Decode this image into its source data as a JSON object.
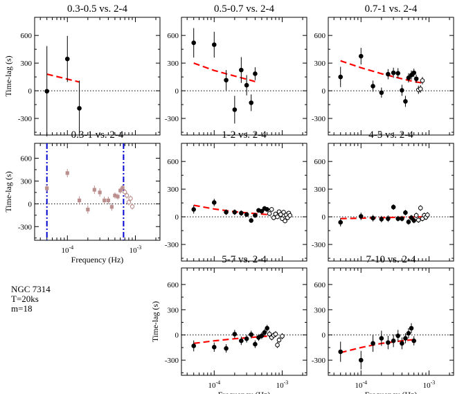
{
  "annotation": {
    "object": "NGC 7314",
    "segment": "T=20ks",
    "bins": "m=18"
  },
  "chart_data": [
    {
      "type": "scatter",
      "title": "0.3-0.5 vs. 2-4",
      "xlabel": "",
      "ylabel": "Time-lag (s)",
      "xscale": "log",
      "xlim": [
        3.3e-05,
        0.0023
      ],
      "ylim": [
        -480,
        720
      ],
      "yticks": [
        "600",
        "300",
        "0",
        "-300"
      ],
      "xticklabels": [],
      "points": [
        {
          "x": 5e-05,
          "y": -5,
          "err": 490
        },
        {
          "x": 0.0001,
          "y": 345,
          "err": 250
        },
        {
          "x": 0.00015,
          "y": -190,
          "err": 300
        }
      ],
      "model": {
        "x": [
          5e-05,
          0.00015
        ],
        "y": [
          180,
          95
        ],
        "color": "#ff0000"
      },
      "zero_line": true
    },
    {
      "type": "scatter",
      "title": "0.5-0.7 vs. 2-4",
      "xlabel": "",
      "ylabel": "",
      "xscale": "log",
      "xlim": [
        3.3e-05,
        0.0023
      ],
      "ylim": [
        -480,
        720
      ],
      "yticks": [
        "600",
        "300",
        "0",
        "-300"
      ],
      "xticklabels": [],
      "points": [
        {
          "x": 5e-05,
          "y": 520,
          "err": 160
        },
        {
          "x": 0.0001,
          "y": 500,
          "err": 140
        },
        {
          "x": 0.00015,
          "y": 115,
          "err": 110
        },
        {
          "x": 0.0002,
          "y": -205,
          "err": 150
        },
        {
          "x": 0.00025,
          "y": 225,
          "err": 140
        },
        {
          "x": 0.0003,
          "y": 60,
          "err": 110
        },
        {
          "x": 0.00035,
          "y": -130,
          "err": 90
        },
        {
          "x": 0.0004,
          "y": 185,
          "err": 70
        }
      ],
      "model": {
        "x": [
          5e-05,
          0.0001,
          0.0002,
          0.0003,
          0.0004
        ],
        "y": [
          300,
          220,
          160,
          125,
          100
        ],
        "color": "#ff0000"
      },
      "zero_line": true
    },
    {
      "type": "scatter",
      "title": "0.7-1 vs. 2-4",
      "xlabel": "",
      "ylabel": "",
      "xscale": "log",
      "xlim": [
        3.3e-05,
        0.0023
      ],
      "ylim": [
        -480,
        720
      ],
      "yticks": [
        "600",
        "300",
        "0",
        "-300"
      ],
      "xticklabels": [],
      "points": [
        {
          "x": 5e-05,
          "y": 150,
          "err": 110
        },
        {
          "x": 0.0001,
          "y": 375,
          "err": 90
        },
        {
          "x": 0.00015,
          "y": 50,
          "err": 60
        },
        {
          "x": 0.0002,
          "y": -20,
          "err": 55
        },
        {
          "x": 0.00025,
          "y": 180,
          "err": 55
        },
        {
          "x": 0.0003,
          "y": 195,
          "err": 55
        },
        {
          "x": 0.00035,
          "y": 190,
          "err": 55
        },
        {
          "x": 0.0004,
          "y": 5,
          "err": 60
        },
        {
          "x": 0.00045,
          "y": -115,
          "err": 60
        },
        {
          "x": 0.0005,
          "y": 140,
          "err": 50
        },
        {
          "x": 0.00055,
          "y": 170,
          "err": 50
        },
        {
          "x": 0.0006,
          "y": 195,
          "err": 45
        },
        {
          "x": 0.00065,
          "y": 130,
          "err": 45
        },
        {
          "x": 0.0007,
          "y": 10,
          "err": 45,
          "open": true
        },
        {
          "x": 0.00075,
          "y": 20,
          "err": 40,
          "open": true
        },
        {
          "x": 0.0008,
          "y": 110,
          "err": 40,
          "open": true
        }
      ],
      "model": {
        "x": [
          5e-05,
          0.0001,
          0.0002,
          0.0004,
          0.0006,
          0.0008
        ],
        "y": [
          325,
          250,
          185,
          130,
          100,
          85
        ],
        "color": "#ff0000"
      },
      "zero_line": true
    },
    {
      "type": "scatter",
      "title": "0.3-1 vs. 2-4",
      "xlabel": "Frequency (Hz)",
      "ylabel": "Time-lag (s)",
      "xscale": "log",
      "xlim": [
        3.3e-05,
        0.0023
      ],
      "ylim": [
        -480,
        720
      ],
      "yticks": [
        "600",
        "300",
        "0",
        "-300"
      ],
      "xticklabels": [
        "10^-4",
        "10^-3"
      ],
      "point_color": "#bc8f8f",
      "points": [
        {
          "x": 5e-05,
          "y": 205,
          "err": 45
        },
        {
          "x": 0.0001,
          "y": 405,
          "err": 55
        },
        {
          "x": 0.00015,
          "y": 45,
          "err": 55
        },
        {
          "x": 0.0002,
          "y": -75,
          "err": 55
        },
        {
          "x": 0.00025,
          "y": 185,
          "err": 55
        },
        {
          "x": 0.0003,
          "y": 150,
          "err": 55
        },
        {
          "x": 0.00035,
          "y": 45,
          "err": 50
        },
        {
          "x": 0.0004,
          "y": 45,
          "err": 50
        },
        {
          "x": 0.00045,
          "y": -40,
          "err": 50
        },
        {
          "x": 0.0005,
          "y": 110,
          "err": 40
        },
        {
          "x": 0.00055,
          "y": 95,
          "err": 40
        },
        {
          "x": 0.0006,
          "y": 175,
          "err": 40
        },
        {
          "x": 0.00065,
          "y": 210,
          "err": 40
        },
        {
          "x": 0.0007,
          "y": 155,
          "err": 40,
          "open": true
        },
        {
          "x": 0.00075,
          "y": 110,
          "err": 40,
          "open": true
        },
        {
          "x": 0.0008,
          "y": 20,
          "err": 40,
          "open": true
        },
        {
          "x": 0.00085,
          "y": 70,
          "err": 40,
          "open": true
        },
        {
          "x": 0.0009,
          "y": -35,
          "err": 40,
          "open": true
        }
      ],
      "vlines": {
        "x": [
          5e-05,
          0.00067
        ],
        "color": "#0000cd"
      },
      "zero_line": true
    },
    {
      "type": "scatter",
      "title": "1-2 vs. 2-4",
      "xlabel": "",
      "ylabel": "",
      "xscale": "log",
      "xlim": [
        3.3e-05,
        0.0023
      ],
      "ylim": [
        -480,
        720
      ],
      "yticks": [
        "600",
        "300",
        "0",
        "-300"
      ],
      "xticklabels": [],
      "points": [
        {
          "x": 5e-05,
          "y": 80,
          "err": 45
        },
        {
          "x": 0.0001,
          "y": 155,
          "err": 40
        },
        {
          "x": 0.00015,
          "y": 50,
          "err": 30
        },
        {
          "x": 0.0002,
          "y": 50,
          "err": 30
        },
        {
          "x": 0.00025,
          "y": 40,
          "err": 30
        },
        {
          "x": 0.0003,
          "y": 25,
          "err": 25
        },
        {
          "x": 0.00035,
          "y": -40,
          "err": 25
        },
        {
          "x": 0.0004,
          "y": 15,
          "err": 25
        },
        {
          "x": 0.00045,
          "y": 70,
          "err": 25
        },
        {
          "x": 0.0005,
          "y": 60,
          "err": 25
        },
        {
          "x": 0.00055,
          "y": 90,
          "err": 25
        },
        {
          "x": 0.0006,
          "y": 80,
          "err": 25
        },
        {
          "x": 0.00065,
          "y": 35,
          "err": 25,
          "open": true
        },
        {
          "x": 0.0007,
          "y": 80,
          "err": 25,
          "open": true
        },
        {
          "x": 0.00075,
          "y": -10,
          "err": 25,
          "open": true
        },
        {
          "x": 0.0008,
          "y": 30,
          "err": 25,
          "open": true
        },
        {
          "x": 0.00085,
          "y": 0,
          "err": 25,
          "open": true
        },
        {
          "x": 0.0009,
          "y": 55,
          "err": 25,
          "open": true
        },
        {
          "x": 0.00095,
          "y": 25,
          "err": 25,
          "open": true
        },
        {
          "x": 0.001,
          "y": -20,
          "err": 25,
          "open": true
        },
        {
          "x": 0.00105,
          "y": 50,
          "err": 25,
          "open": true
        },
        {
          "x": 0.0011,
          "y": -45,
          "err": 25,
          "open": true
        },
        {
          "x": 0.00115,
          "y": 20,
          "err": 25,
          "open": true
        },
        {
          "x": 0.0012,
          "y": -10,
          "err": 25,
          "open": true
        },
        {
          "x": 0.00125,
          "y": 40,
          "err": 25,
          "open": true
        },
        {
          "x": 0.0013,
          "y": 15,
          "err": 25,
          "open": true
        }
      ],
      "model": {
        "x": [
          5e-05,
          0.0001,
          0.0002,
          0.0004,
          0.0006
        ],
        "y": [
          125,
          85,
          55,
          35,
          25
        ],
        "color": "#ff0000"
      },
      "zero_line": true
    },
    {
      "type": "scatter",
      "title": "4-5 vs. 2-4",
      "xlabel": "",
      "ylabel": "",
      "xscale": "log",
      "xlim": [
        3.3e-05,
        0.0023
      ],
      "ylim": [
        -480,
        720
      ],
      "yticks": [
        "600",
        "300",
        "0",
        "-300"
      ],
      "xticklabels": [],
      "points": [
        {
          "x": 5e-05,
          "y": -60,
          "err": 45
        },
        {
          "x": 0.0001,
          "y": 5,
          "err": 40
        },
        {
          "x": 0.00015,
          "y": -15,
          "err": 35
        },
        {
          "x": 0.0002,
          "y": -25,
          "err": 35
        },
        {
          "x": 0.00025,
          "y": -20,
          "err": 35
        },
        {
          "x": 0.0003,
          "y": 105,
          "err": 30
        },
        {
          "x": 0.00035,
          "y": -20,
          "err": 30
        },
        {
          "x": 0.0004,
          "y": -20,
          "err": 30
        },
        {
          "x": 0.00045,
          "y": 45,
          "err": 30
        },
        {
          "x": 0.0005,
          "y": -55,
          "err": 30
        },
        {
          "x": 0.00055,
          "y": -10,
          "err": 30
        },
        {
          "x": 0.0006,
          "y": -40,
          "err": 30
        },
        {
          "x": 0.00065,
          "y": 15,
          "err": 30,
          "open": true
        },
        {
          "x": 0.0007,
          "y": -35,
          "err": 30,
          "open": true
        },
        {
          "x": 0.00075,
          "y": 95,
          "err": 30,
          "open": true
        },
        {
          "x": 0.0008,
          "y": -20,
          "err": 30,
          "open": true
        },
        {
          "x": 0.00085,
          "y": 15,
          "err": 30,
          "open": true
        },
        {
          "x": 0.0009,
          "y": -5,
          "err": 30,
          "open": true
        },
        {
          "x": 0.00095,
          "y": 20,
          "err": 30,
          "open": true
        }
      ],
      "model": {
        "x": [
          5e-05,
          0.0001,
          0.0002,
          0.0004,
          0.0009
        ],
        "y": [
          -20,
          -15,
          -10,
          -5,
          0
        ],
        "color": "#ff0000"
      },
      "zero_line": true
    },
    {
      "type": "scatter",
      "title": "5-7 vs. 2-4",
      "xlabel": "Frequency (Hz)",
      "ylabel": "Time-lag (s)",
      "xscale": "log",
      "xlim": [
        3.3e-05,
        0.0023
      ],
      "ylim": [
        -480,
        720
      ],
      "yticks": [
        "600",
        "300",
        "0",
        "-300"
      ],
      "xticklabels": [
        "10^-4",
        "10^-3"
      ],
      "points": [
        {
          "x": 5e-05,
          "y": -130,
          "err": 65
        },
        {
          "x": 0.0001,
          "y": -145,
          "err": 55
        },
        {
          "x": 0.00015,
          "y": -160,
          "err": 50
        },
        {
          "x": 0.0002,
          "y": 10,
          "err": 50
        },
        {
          "x": 0.00025,
          "y": -70,
          "err": 50
        },
        {
          "x": 0.0003,
          "y": -45,
          "err": 45
        },
        {
          "x": 0.00035,
          "y": 5,
          "err": 45
        },
        {
          "x": 0.0004,
          "y": -110,
          "err": 45
        },
        {
          "x": 0.00045,
          "y": -30,
          "err": 40
        },
        {
          "x": 0.0005,
          "y": -10,
          "err": 40
        },
        {
          "x": 0.00055,
          "y": 30,
          "err": 40
        },
        {
          "x": 0.0006,
          "y": 80,
          "err": 40
        },
        {
          "x": 0.00065,
          "y": 10,
          "err": 40,
          "open": true
        },
        {
          "x": 0.0007,
          "y": -30,
          "err": 35,
          "open": true
        },
        {
          "x": 0.00075,
          "y": -5,
          "err": 35,
          "open": true
        },
        {
          "x": 0.0008,
          "y": 10,
          "err": 35,
          "open": true
        },
        {
          "x": 0.00085,
          "y": -120,
          "err": 35,
          "open": true
        },
        {
          "x": 0.0009,
          "y": -60,
          "err": 35,
          "open": true
        },
        {
          "x": 0.001,
          "y": -15,
          "err": 35,
          "open": true
        }
      ],
      "model": {
        "x": [
          5e-05,
          0.0001,
          0.0002,
          0.0004,
          0.0006
        ],
        "y": [
          -100,
          -70,
          -45,
          -25,
          -15
        ],
        "color": "#ff0000"
      },
      "zero_line": true
    },
    {
      "type": "scatter",
      "title": "7-10 vs. 2-4",
      "xlabel": "Frequency (Hz)",
      "ylabel": "",
      "xscale": "log",
      "xlim": [
        3.3e-05,
        0.0023
      ],
      "ylim": [
        -480,
        720
      ],
      "yticks": [
        "600",
        "300",
        "0",
        "-300"
      ],
      "xticklabels": [
        "10^-4",
        "10^-3"
      ],
      "points": [
        {
          "x": 5e-05,
          "y": -200,
          "err": 120
        },
        {
          "x": 0.0001,
          "y": -300,
          "err": 110
        },
        {
          "x": 0.00015,
          "y": -100,
          "err": 100
        },
        {
          "x": 0.0002,
          "y": -40,
          "err": 90
        },
        {
          "x": 0.00025,
          "y": -90,
          "err": 80
        },
        {
          "x": 0.0003,
          "y": -70,
          "err": 75
        },
        {
          "x": 0.00035,
          "y": -10,
          "err": 70
        },
        {
          "x": 0.0004,
          "y": -100,
          "err": 70
        },
        {
          "x": 0.00045,
          "y": -40,
          "err": 60
        },
        {
          "x": 0.0005,
          "y": 20,
          "err": 60
        },
        {
          "x": 0.00055,
          "y": 80,
          "err": 60
        },
        {
          "x": 0.0006,
          "y": -70,
          "err": 55
        }
      ],
      "model": {
        "x": [
          5e-05,
          0.0001,
          0.0002,
          0.0004,
          0.0006
        ],
        "y": [
          -210,
          -150,
          -100,
          -70,
          -55
        ],
        "color": "#ff0000"
      },
      "zero_line": true
    }
  ]
}
